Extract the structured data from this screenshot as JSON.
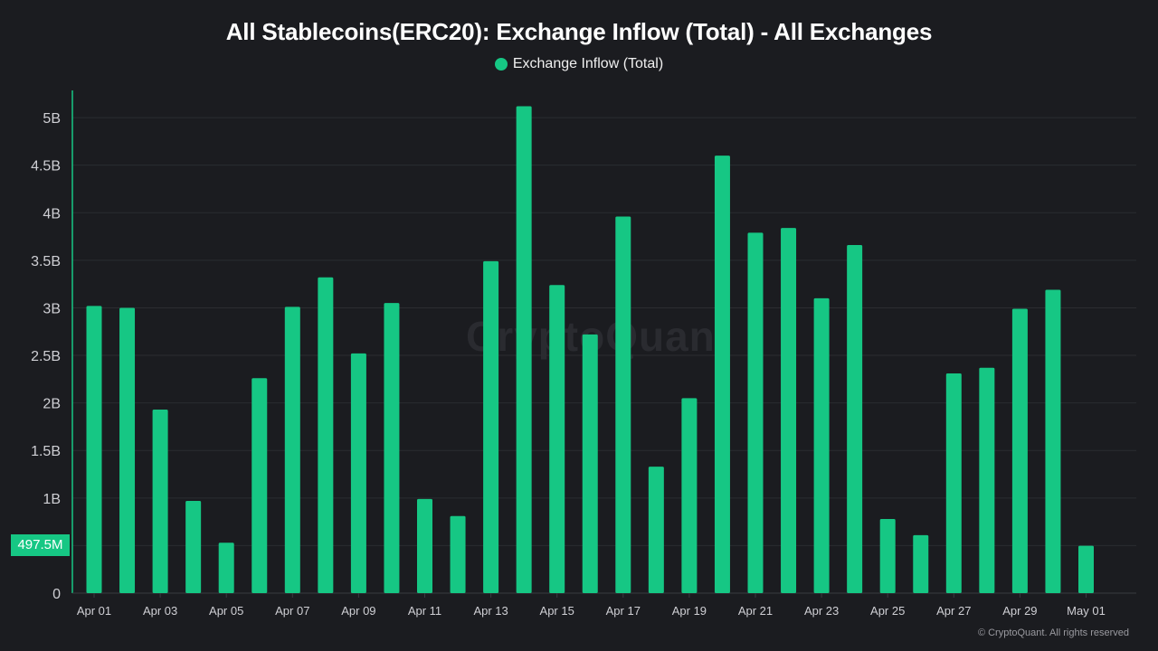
{
  "colors": {
    "bar": "#16c784",
    "background": "#1b1c20",
    "grid": "#2b2c31",
    "axis_text": "#cfcfd4"
  },
  "watermark": "CryptoQuant",
  "copyright": "© CryptoQuant. All rights reserved",
  "current_value_label": "497.5M",
  "chart_data": {
    "type": "bar",
    "title": "All Stablecoins(ERC20): Exchange Inflow (Total) - All Exchanges",
    "legend": [
      "Exchange Inflow (Total)"
    ],
    "legend_position": "top-center",
    "grid": true,
    "ylim": [
      0,
      5400000000
    ],
    "yticks": [
      0,
      500000000,
      1000000000,
      1500000000,
      2000000000,
      2500000000,
      3000000000,
      3500000000,
      4000000000,
      4500000000,
      5000000000
    ],
    "ytick_labels": [
      "0",
      "",
      "1B",
      "1.5B",
      "2B",
      "2.5B",
      "3B",
      "3.5B",
      "4B",
      "4.5B",
      "5B"
    ],
    "categories": [
      "Apr 01",
      "Apr 02",
      "Apr 03",
      "Apr 04",
      "Apr 05",
      "Apr 06",
      "Apr 07",
      "Apr 08",
      "Apr 09",
      "Apr 10",
      "Apr 11",
      "Apr 12",
      "Apr 13",
      "Apr 14",
      "Apr 15",
      "Apr 16",
      "Apr 17",
      "Apr 18",
      "Apr 19",
      "Apr 20",
      "Apr 21",
      "Apr 22",
      "Apr 23",
      "Apr 24",
      "Apr 25",
      "Apr 26",
      "Apr 27",
      "Apr 28",
      "Apr 29",
      "Apr 30",
      "May 01"
    ],
    "xtick_labels": [
      "Apr 01",
      "",
      "Apr 03",
      "",
      "Apr 05",
      "",
      "Apr 07",
      "",
      "Apr 09",
      "",
      "Apr 11",
      "",
      "Apr 13",
      "",
      "Apr 15",
      "",
      "Apr 17",
      "",
      "Apr 19",
      "",
      "Apr 21",
      "",
      "Apr 23",
      "",
      "Apr 25",
      "",
      "Apr 27",
      "",
      "Apr 29",
      "",
      "May 01"
    ],
    "series": [
      {
        "name": "Exchange Inflow (Total)",
        "values": [
          3020000000,
          3000000000,
          1930000000,
          970000000,
          530000000,
          2260000000,
          3010000000,
          3320000000,
          2520000000,
          3050000000,
          990000000,
          810000000,
          3490000000,
          5120000000,
          3240000000,
          2720000000,
          3960000000,
          1330000000,
          2050000000,
          4600000000,
          3790000000,
          3840000000,
          3100000000,
          3660000000,
          780000000,
          610000000,
          2310000000,
          2370000000,
          2990000000,
          3190000000,
          497500000
        ]
      }
    ]
  }
}
